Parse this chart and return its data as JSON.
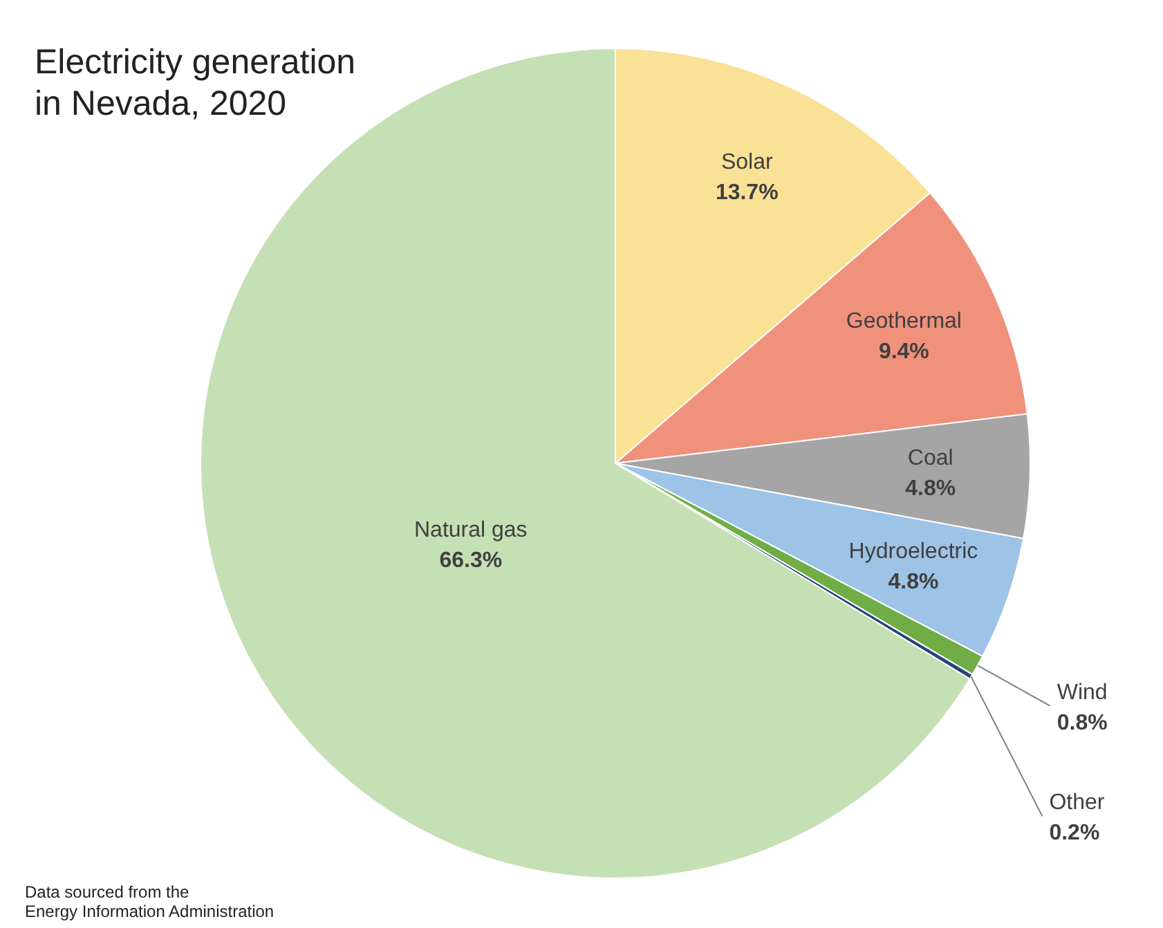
{
  "chart_data": {
    "type": "pie",
    "title": "Electricity generation\nin Nevada, 2020",
    "categories": [
      "Solar",
      "Geothermal",
      "Coal",
      "Hydroelectric",
      "Wind",
      "Other",
      "Natural gas"
    ],
    "values": [
      13.7,
      9.4,
      4.8,
      4.8,
      0.8,
      0.2,
      66.3
    ],
    "colors": [
      "#f9e196",
      "#f0917c",
      "#a5a5a5",
      "#9dc3e6",
      "#70ad47",
      "#264478",
      "#c5e0b4"
    ],
    "value_labels": [
      "13.7%",
      "9.4%",
      "4.8%",
      "4.8%",
      "0.8%",
      "0.2%",
      "66.3%"
    ],
    "annotations": [
      "Data sourced from the\nEnergy Information Administration"
    ]
  }
}
